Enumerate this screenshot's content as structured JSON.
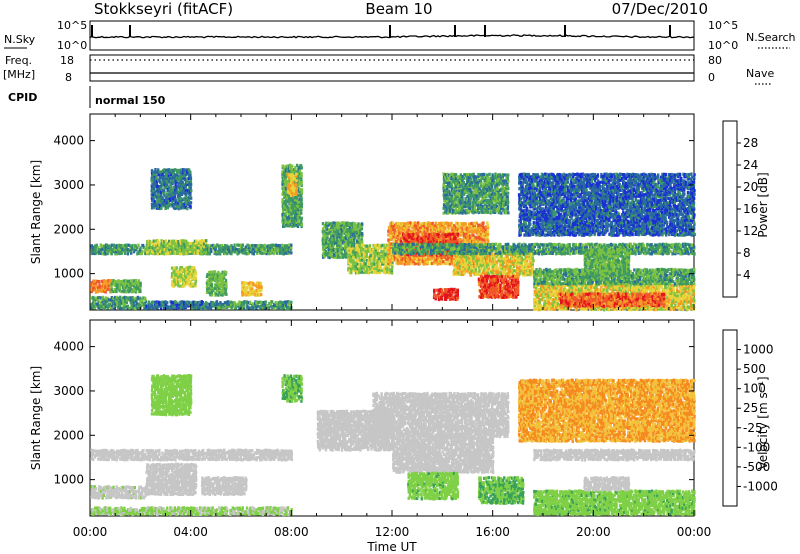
{
  "header": {
    "station": "Stokkseyri (fitACF)",
    "beam": "Beam 10",
    "date": "07/Dec/2010"
  },
  "status_panels": {
    "left": {
      "nsky": "N.Sky",
      "freq": "Freq.",
      "mhz": "[MHz]",
      "cpid": "CPID"
    },
    "right": {
      "nsearch": "N.Search",
      "nave": "Nave"
    },
    "noise_ticks": {
      "top": "10^5",
      "bottom": "10^0"
    },
    "freq_ticks": {
      "top": "18",
      "bottom": "8"
    },
    "nave_ticks": {
      "top": "80",
      "bottom": "0"
    },
    "cpid_label": "normal 150"
  },
  "chart_data": [
    {
      "type": "heatmap",
      "name": "power",
      "ylabel": "Slant Range [km]",
      "ylim": [
        180,
        4600
      ],
      "yticks": [
        "1000",
        "2000",
        "3000",
        "4000"
      ],
      "xlabel": "Time UT",
      "xticks": [
        "00:00",
        "04:00",
        "08:00",
        "12:00",
        "16:00",
        "20:00",
        "00:00"
      ],
      "xlim_hours": [
        0,
        24
      ],
      "colorbar": {
        "label": "Power [dB]",
        "ticks": [
          "4",
          "8",
          "12",
          "16",
          "20",
          "24",
          "28"
        ],
        "colors": [
          "#1a2fd6",
          "#2a6b9e",
          "#3f9a62",
          "#7cc242",
          "#e8d43a",
          "#f59a24",
          "#f0572a",
          "#e2141b"
        ],
        "range": [
          0,
          32
        ]
      },
      "regions": [
        {
          "t": [
            0.0,
            0.8
          ],
          "r": [
            620,
            900
          ],
          "v": 24
        },
        {
          "t": [
            0.8,
            2.0
          ],
          "r": [
            620,
            900
          ],
          "v": 12
        },
        {
          "t": [
            0.0,
            2.2
          ],
          "r": [
            250,
            520
          ],
          "v": 10
        },
        {
          "t": [
            2.2,
            4.8
          ],
          "r": [
            250,
            420
          ],
          "v": 6
        },
        {
          "t": [
            4.8,
            8.0
          ],
          "r": [
            250,
            420
          ],
          "v": 9
        },
        {
          "t": [
            0.0,
            8.0
          ],
          "r": [
            1480,
            1700
          ],
          "v": 10
        },
        {
          "t": [
            2.2,
            4.6
          ],
          "r": [
            1480,
            1800
          ],
          "v": 15
        },
        {
          "t": [
            4.6,
            5.4
          ],
          "r": [
            550,
            1100
          ],
          "v": 12
        },
        {
          "t": [
            6.0,
            6.8
          ],
          "r": [
            550,
            850
          ],
          "v": 20
        },
        {
          "t": [
            2.4,
            4.0
          ],
          "r": [
            2500,
            3400
          ],
          "v": 7
        },
        {
          "t": [
            3.2,
            4.2
          ],
          "r": [
            750,
            1200
          ],
          "v": 16
        },
        {
          "t": [
            7.6,
            8.4
          ],
          "r": [
            2100,
            3500
          ],
          "v": 11
        },
        {
          "t": [
            7.8,
            8.2
          ],
          "r": [
            2800,
            3300
          ],
          "v": 20
        },
        {
          "t": [
            9.2,
            10.8
          ],
          "r": [
            1400,
            2200
          ],
          "v": 11
        },
        {
          "t": [
            10.2,
            12.0
          ],
          "r": [
            1050,
            1700
          ],
          "v": 15
        },
        {
          "t": [
            11.8,
            15.8
          ],
          "r": [
            1250,
            2200
          ],
          "v": 22
        },
        {
          "t": [
            12.3,
            14.6
          ],
          "r": [
            1450,
            1950
          ],
          "v": 27
        },
        {
          "t": [
            14.4,
            17.6
          ],
          "r": [
            1000,
            1600
          ],
          "v": 18
        },
        {
          "t": [
            15.4,
            17.0
          ],
          "r": [
            500,
            1000
          ],
          "v": 27
        },
        {
          "t": [
            13.6,
            14.6
          ],
          "r": [
            450,
            700
          ],
          "v": 29
        },
        {
          "t": [
            12.0,
            24.0
          ],
          "r": [
            1480,
            1720
          ],
          "v": 10
        },
        {
          "t": [
            14.0,
            16.6
          ],
          "r": [
            2400,
            3300
          ],
          "v": 10
        },
        {
          "t": [
            17.6,
            24.0
          ],
          "r": [
            220,
            800
          ],
          "v": 18
        },
        {
          "t": [
            18.6,
            22.8
          ],
          "r": [
            300,
            600
          ],
          "v": 26
        },
        {
          "t": [
            17.6,
            24.0
          ],
          "r": [
            800,
            1150
          ],
          "v": 11
        },
        {
          "t": [
            17.0,
            24.0
          ],
          "r": [
            1900,
            3300
          ],
          "v": 5
        },
        {
          "t": [
            19.6,
            21.4
          ],
          "r": [
            1000,
            1600
          ],
          "v": 12
        }
      ]
    },
    {
      "type": "heatmap",
      "name": "velocity",
      "ylabel": "Slant Range [km]",
      "ylim": [
        180,
        4600
      ],
      "yticks": [
        "1000",
        "2000",
        "3000",
        "4000"
      ],
      "xlabel": "Time UT",
      "xticks": [
        "00:00",
        "04:00",
        "08:00",
        "12:00",
        "16:00",
        "20:00",
        "00:00"
      ],
      "xlim_hours": [
        0,
        24
      ],
      "colorbar": {
        "label": "Velocity [m s⁻¹]",
        "ticks": [
          "1000",
          "500",
          "100",
          "25",
          "-25",
          "-100",
          "-500",
          "-1000"
        ],
        "colors": [
          "#1c3fc2",
          "#2f7fa3",
          "#3aa05a",
          "#7fd046",
          "#c6c6c6",
          "#f3c23c",
          "#f58a1f",
          "#ef4a1c",
          "#e3121b"
        ],
        "range": [
          -1200,
          1200
        ]
      },
      "regions": [
        {
          "t": [
            0.0,
            8.0
          ],
          "r": [
            1480,
            1720
          ],
          "v": 0
        },
        {
          "t": [
            0.0,
            2.2
          ],
          "r": [
            620,
            900
          ],
          "v": -100
        },
        {
          "t": [
            0.0,
            8.0
          ],
          "r": [
            250,
            420
          ],
          "v": -150
        },
        {
          "t": [
            2.2,
            4.2
          ],
          "r": [
            700,
            1400
          ],
          "v": 80
        },
        {
          "t": [
            4.4,
            6.2
          ],
          "r": [
            700,
            1100
          ],
          "v": 0
        },
        {
          "t": [
            7.6,
            8.4
          ],
          "r": [
            2800,
            3400
          ],
          "v": -400
        },
        {
          "t": [
            2.4,
            4.0
          ],
          "r": [
            2500,
            3400
          ],
          "v": -250
        },
        {
          "t": [
            9.0,
            12.0
          ],
          "r": [
            1700,
            2600
          ],
          "v": 0
        },
        {
          "t": [
            11.2,
            16.6
          ],
          "r": [
            2000,
            3000
          ],
          "v": 0
        },
        {
          "t": [
            12.0,
            16.0
          ],
          "r": [
            1200,
            2000
          ],
          "v": 0
        },
        {
          "t": [
            12.6,
            14.6
          ],
          "r": [
            600,
            1200
          ],
          "v": -300
        },
        {
          "t": [
            15.4,
            17.2
          ],
          "r": [
            500,
            1100
          ],
          "v": -400
        },
        {
          "t": [
            17.6,
            24.0
          ],
          "r": [
            250,
            800
          ],
          "v": -300
        },
        {
          "t": [
            17.6,
            24.0
          ],
          "r": [
            1480,
            1720
          ],
          "v": 0
        },
        {
          "t": [
            19.6,
            21.4
          ],
          "r": [
            800,
            1100
          ],
          "v": 0
        },
        {
          "t": [
            17.0,
            24.0
          ],
          "r": [
            1900,
            3300
          ],
          "v": 400
        }
      ]
    }
  ]
}
